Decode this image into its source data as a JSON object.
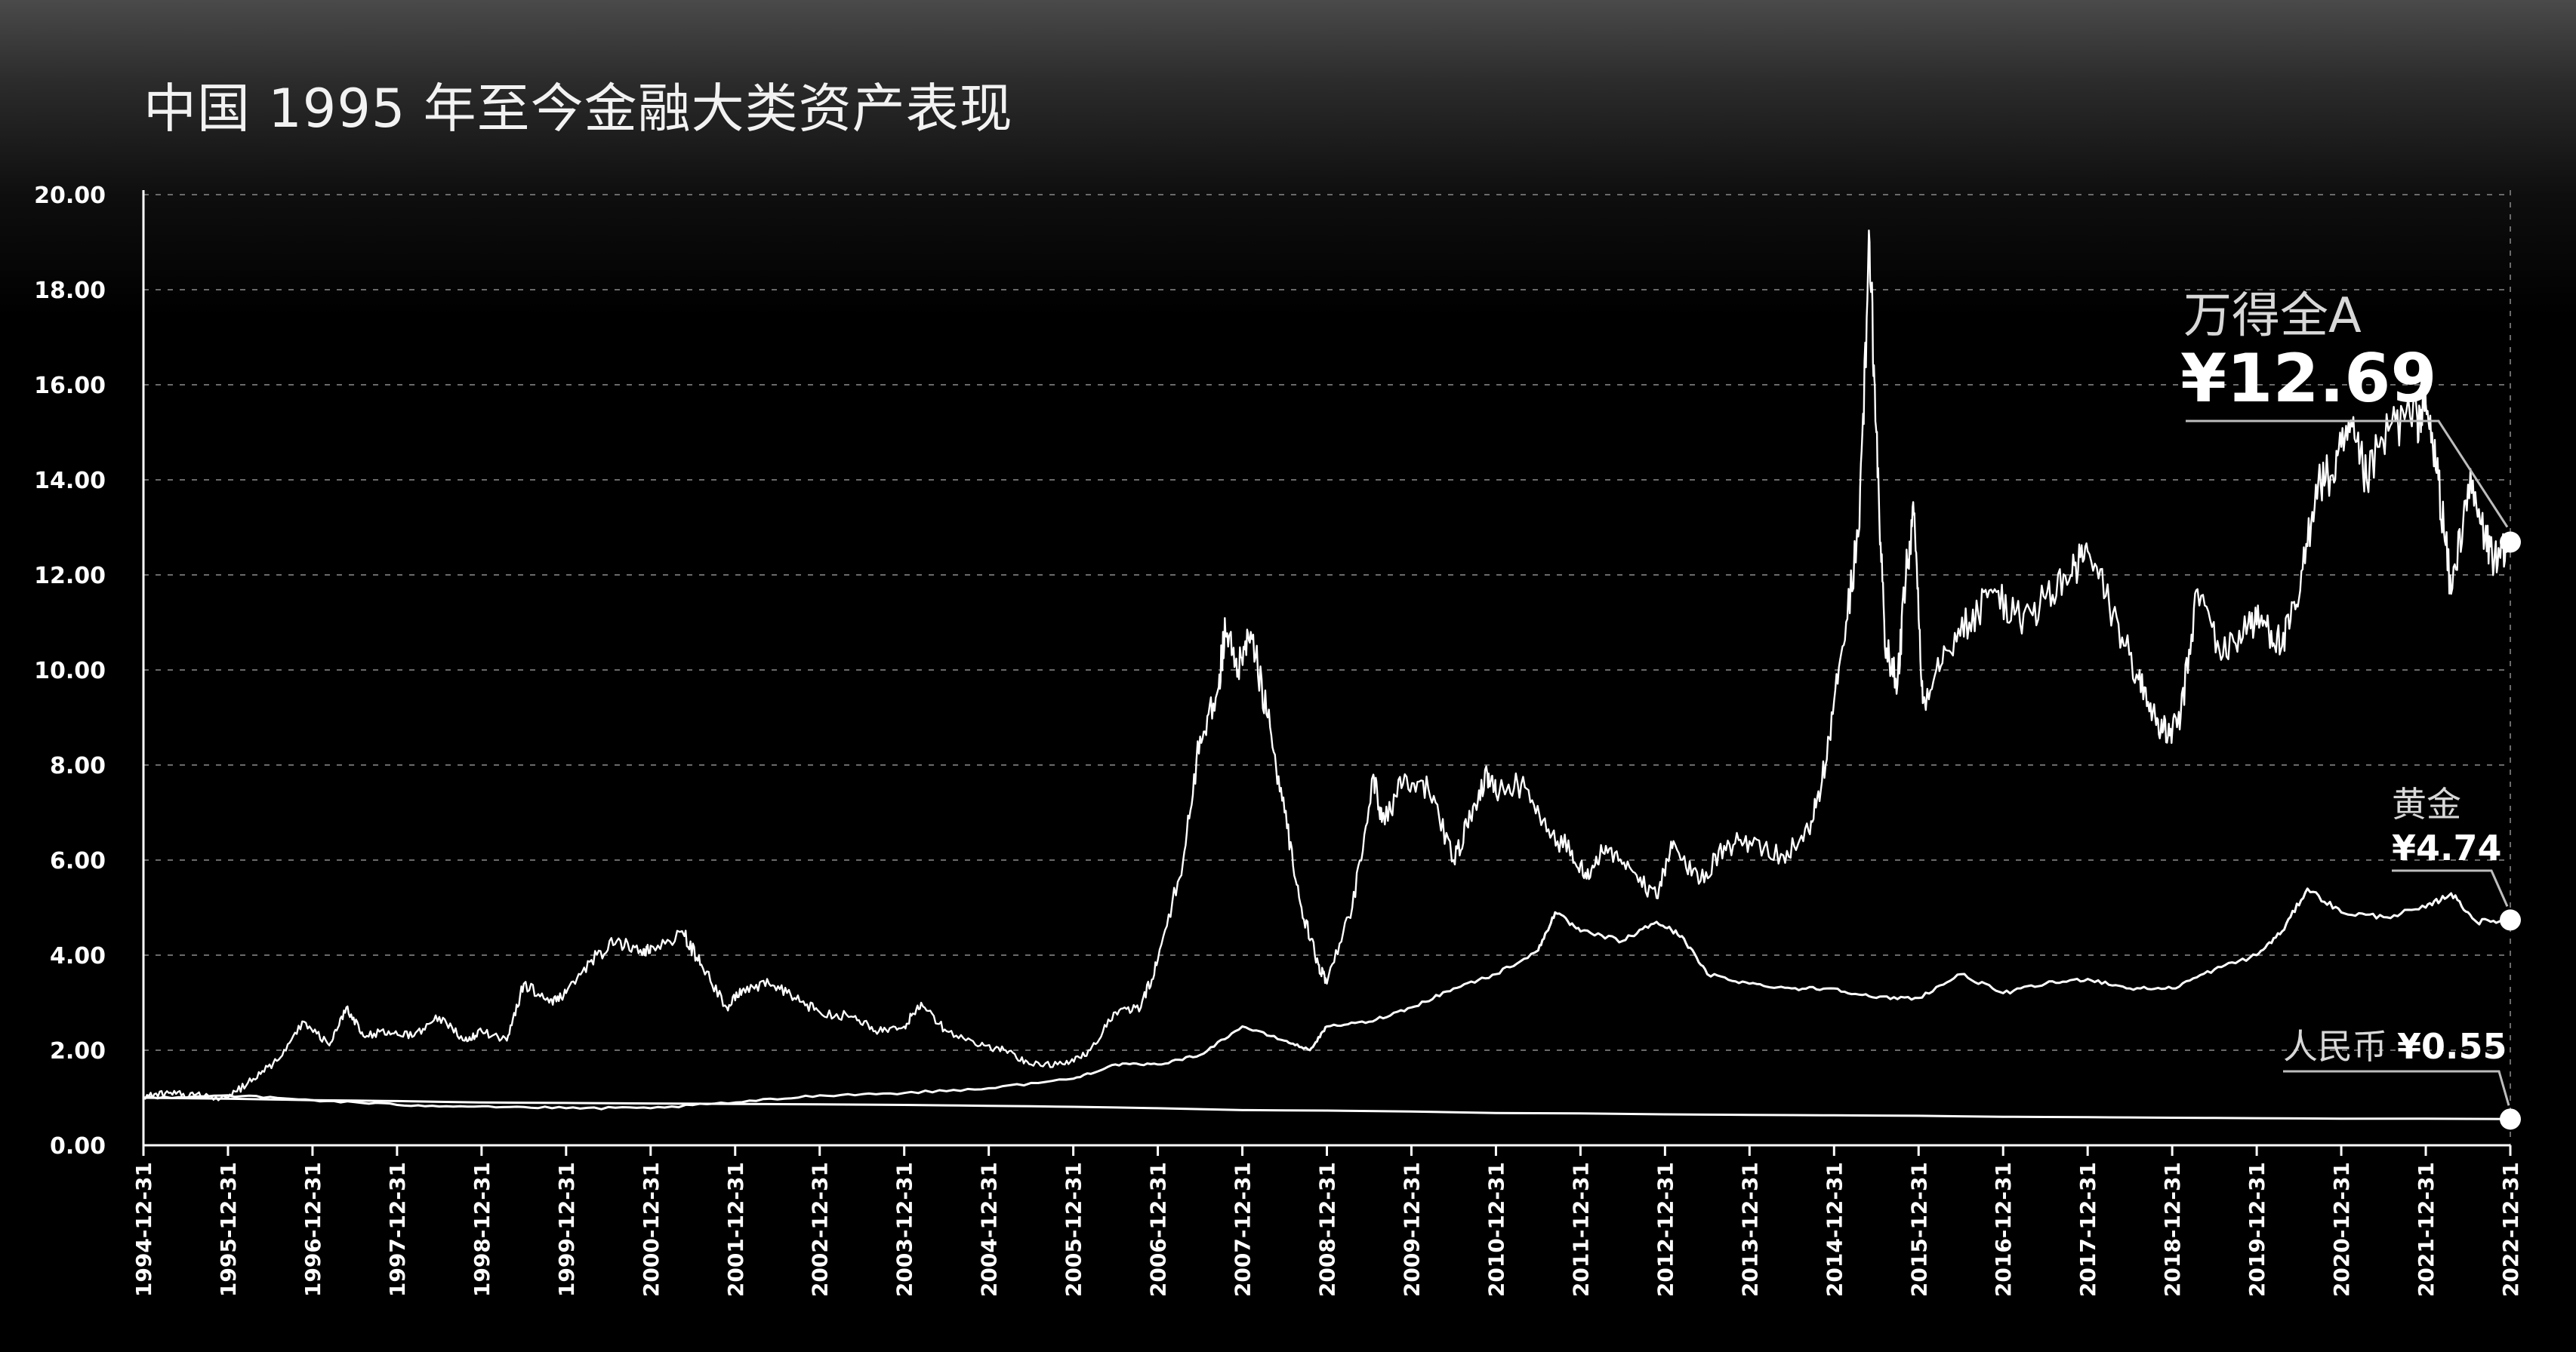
{
  "title": "中国 1995 年至今金融大类资产表现",
  "colors": {
    "background": "#000000",
    "line": "#ffffff",
    "grid": "#6a6a6a",
    "text": "#ffffff",
    "label_dim": "#d8d8d8"
  },
  "chart_data": {
    "type": "line",
    "title": "中国 1995 年至今金融大类资产表现",
    "xlabel": "",
    "ylabel": "",
    "ylim": [
      0,
      20
    ],
    "y_ticks": [
      "0.00",
      "2.00",
      "4.00",
      "6.00",
      "8.00",
      "10.00",
      "12.00",
      "14.00",
      "16.00",
      "18.00",
      "20.00"
    ],
    "x_ticks": [
      "1994-12-31",
      "1995-12-31",
      "1996-12-31",
      "1997-12-31",
      "1998-12-31",
      "1999-12-31",
      "2000-12-31",
      "2001-12-31",
      "2002-12-31",
      "2003-12-31",
      "2004-12-31",
      "2005-12-31",
      "2006-12-31",
      "2007-12-31",
      "2008-12-31",
      "2009-12-31",
      "2010-12-31",
      "2011-12-31",
      "2012-12-31",
      "2013-12-31",
      "2014-12-31",
      "2015-12-31",
      "2016-12-31",
      "2017-12-31",
      "2018-12-31",
      "2019-12-31",
      "2020-12-31",
      "2021-12-31",
      "2022-12-31"
    ],
    "xlim": [
      1995.0,
      2023.0
    ],
    "grid": "horizontal dashed",
    "series": [
      {
        "name": "万得全A",
        "label_value": "¥12.69",
        "final_value": 12.69,
        "points": [
          [
            1995.0,
            1.0
          ],
          [
            1995.3,
            1.1
          ],
          [
            1995.6,
            1.05
          ],
          [
            1996.0,
            1.0
          ],
          [
            1996.3,
            1.4
          ],
          [
            1996.6,
            1.8
          ],
          [
            1996.9,
            2.6
          ],
          [
            1997.2,
            2.1
          ],
          [
            1997.4,
            2.9
          ],
          [
            1997.6,
            2.3
          ],
          [
            1997.9,
            2.4
          ],
          [
            1998.2,
            2.3
          ],
          [
            1998.5,
            2.7
          ],
          [
            1998.8,
            2.2
          ],
          [
            1999.0,
            2.4
          ],
          [
            1999.3,
            2.2
          ],
          [
            1999.5,
            3.4
          ],
          [
            1999.8,
            3.0
          ],
          [
            2000.0,
            3.2
          ],
          [
            2000.3,
            3.9
          ],
          [
            2000.6,
            4.3
          ],
          [
            2000.9,
            4.0
          ],
          [
            2001.0,
            4.2
          ],
          [
            2001.4,
            4.4
          ],
          [
            2001.6,
            3.8
          ],
          [
            2001.9,
            2.9
          ],
          [
            2002.1,
            3.3
          ],
          [
            2002.4,
            3.4
          ],
          [
            2002.7,
            3.1
          ],
          [
            2003.0,
            2.8
          ],
          [
            2003.4,
            2.7
          ],
          [
            2003.7,
            2.4
          ],
          [
            2004.0,
            2.5
          ],
          [
            2004.2,
            3.0
          ],
          [
            2004.5,
            2.4
          ],
          [
            2004.9,
            2.1
          ],
          [
            2005.2,
            2.0
          ],
          [
            2005.5,
            1.7
          ],
          [
            2005.9,
            1.7
          ],
          [
            2006.2,
            2.0
          ],
          [
            2006.5,
            2.8
          ],
          [
            2006.8,
            2.9
          ],
          [
            2007.0,
            3.9
          ],
          [
            2007.3,
            6.0
          ],
          [
            2007.5,
            8.6
          ],
          [
            2007.7,
            9.5
          ],
          [
            2007.8,
            10.8
          ],
          [
            2007.95,
            10.0
          ],
          [
            2008.1,
            10.8
          ],
          [
            2008.3,
            9.0
          ],
          [
            2008.5,
            7.0
          ],
          [
            2008.7,
            5.0
          ],
          [
            2008.9,
            3.8
          ],
          [
            2009.0,
            3.4
          ],
          [
            2009.3,
            5.0
          ],
          [
            2009.55,
            7.8
          ],
          [
            2009.65,
            6.8
          ],
          [
            2009.9,
            7.6
          ],
          [
            2010.2,
            7.5
          ],
          [
            2010.5,
            6.0
          ],
          [
            2010.7,
            6.9
          ],
          [
            2010.9,
            7.8
          ],
          [
            2011.0,
            7.4
          ],
          [
            2011.3,
            7.6
          ],
          [
            2011.6,
            6.6
          ],
          [
            2011.9,
            6.2
          ],
          [
            2012.1,
            5.6
          ],
          [
            2012.3,
            6.3
          ],
          [
            2012.6,
            5.8
          ],
          [
            2012.9,
            5.2
          ],
          [
            2013.1,
            6.4
          ],
          [
            2013.4,
            5.5
          ],
          [
            2013.7,
            6.3
          ],
          [
            2014.0,
            6.4
          ],
          [
            2014.4,
            6.1
          ],
          [
            2014.7,
            6.6
          ],
          [
            2014.9,
            8.0
          ],
          [
            2015.1,
            10.5
          ],
          [
            2015.3,
            13.0
          ],
          [
            2015.42,
            19.0
          ],
          [
            2015.5,
            15.0
          ],
          [
            2015.6,
            10.5
          ],
          [
            2015.75,
            9.7
          ],
          [
            2015.85,
            12.0
          ],
          [
            2015.95,
            13.3
          ],
          [
            2016.05,
            9.3
          ],
          [
            2016.3,
            10.5
          ],
          [
            2016.6,
            11.0
          ],
          [
            2016.9,
            11.7
          ],
          [
            2017.2,
            11.0
          ],
          [
            2017.5,
            11.5
          ],
          [
            2017.8,
            12.0
          ],
          [
            2018.0,
            12.5
          ],
          [
            2018.3,
            11.2
          ],
          [
            2018.6,
            9.8
          ],
          [
            2018.8,
            9.0
          ],
          [
            2018.95,
            8.6
          ],
          [
            2019.1,
            9.0
          ],
          [
            2019.3,
            11.7
          ],
          [
            2019.6,
            10.3
          ],
          [
            2019.9,
            11.0
          ],
          [
            2020.1,
            11.0
          ],
          [
            2020.3,
            10.5
          ],
          [
            2020.5,
            11.5
          ],
          [
            2020.7,
            13.9
          ],
          [
            2020.9,
            14.1
          ],
          [
            2021.1,
            15.0
          ],
          [
            2021.3,
            14.0
          ],
          [
            2021.6,
            15.2
          ],
          [
            2021.9,
            15.3
          ],
          [
            2022.0,
            15.6
          ],
          [
            2022.15,
            14.0
          ],
          [
            2022.3,
            11.6
          ],
          [
            2022.5,
            13.9
          ],
          [
            2022.7,
            12.8
          ],
          [
            2022.85,
            12.2
          ],
          [
            2023.0,
            12.69
          ]
        ]
      },
      {
        "name": "黄金",
        "label_value": "¥4.74",
        "final_value": 4.74,
        "points": [
          [
            1995.0,
            1.0
          ],
          [
            1996.0,
            1.05
          ],
          [
            1997.0,
            0.95
          ],
          [
            1998.0,
            0.85
          ],
          [
            1999.0,
            0.82
          ],
          [
            2000.0,
            0.78
          ],
          [
            2001.0,
            0.78
          ],
          [
            2002.0,
            0.9
          ],
          [
            2003.0,
            1.05
          ],
          [
            2004.0,
            1.1
          ],
          [
            2005.0,
            1.2
          ],
          [
            2006.0,
            1.4
          ],
          [
            2006.5,
            1.7
          ],
          [
            2007.0,
            1.7
          ],
          [
            2007.5,
            1.9
          ],
          [
            2008.0,
            2.5
          ],
          [
            2008.5,
            2.2
          ],
          [
            2008.8,
            2.0
          ],
          [
            2009.0,
            2.5
          ],
          [
            2009.5,
            2.6
          ],
          [
            2010.0,
            2.9
          ],
          [
            2010.5,
            3.3
          ],
          [
            2011.0,
            3.6
          ],
          [
            2011.5,
            4.1
          ],
          [
            2011.7,
            4.9
          ],
          [
            2012.0,
            4.5
          ],
          [
            2012.5,
            4.3
          ],
          [
            2012.9,
            4.7
          ],
          [
            2013.2,
            4.4
          ],
          [
            2013.5,
            3.6
          ],
          [
            2014.0,
            3.4
          ],
          [
            2014.5,
            3.3
          ],
          [
            2015.0,
            3.3
          ],
          [
            2015.5,
            3.1
          ],
          [
            2016.0,
            3.1
          ],
          [
            2016.5,
            3.6
          ],
          [
            2017.0,
            3.2
          ],
          [
            2017.5,
            3.4
          ],
          [
            2018.0,
            3.5
          ],
          [
            2018.5,
            3.3
          ],
          [
            2019.0,
            3.3
          ],
          [
            2019.5,
            3.7
          ],
          [
            2020.0,
            4.0
          ],
          [
            2020.3,
            4.5
          ],
          [
            2020.6,
            5.4
          ],
          [
            2021.0,
            4.9
          ],
          [
            2021.5,
            4.8
          ],
          [
            2022.0,
            5.0
          ],
          [
            2022.3,
            5.3
          ],
          [
            2022.6,
            4.7
          ],
          [
            2023.0,
            4.74
          ]
        ]
      },
      {
        "name": "人民币",
        "label_value": "¥0.55",
        "final_value": 0.55,
        "points": [
          [
            1995.0,
            1.0
          ],
          [
            1996.0,
            0.98
          ],
          [
            1997.0,
            0.95
          ],
          [
            1998.0,
            0.93
          ],
          [
            1999.0,
            0.9
          ],
          [
            2000.0,
            0.89
          ],
          [
            2001.0,
            0.88
          ],
          [
            2002.0,
            0.87
          ],
          [
            2003.0,
            0.86
          ],
          [
            2004.0,
            0.85
          ],
          [
            2005.0,
            0.83
          ],
          [
            2006.0,
            0.81
          ],
          [
            2007.0,
            0.78
          ],
          [
            2008.0,
            0.74
          ],
          [
            2009.0,
            0.73
          ],
          [
            2010.0,
            0.71
          ],
          [
            2011.0,
            0.68
          ],
          [
            2012.0,
            0.67
          ],
          [
            2013.0,
            0.65
          ],
          [
            2014.0,
            0.64
          ],
          [
            2015.0,
            0.63
          ],
          [
            2016.0,
            0.62
          ],
          [
            2017.0,
            0.6
          ],
          [
            2018.0,
            0.59
          ],
          [
            2019.0,
            0.58
          ],
          [
            2020.0,
            0.57
          ],
          [
            2021.0,
            0.56
          ],
          [
            2022.0,
            0.56
          ],
          [
            2023.0,
            0.55
          ]
        ]
      }
    ]
  }
}
